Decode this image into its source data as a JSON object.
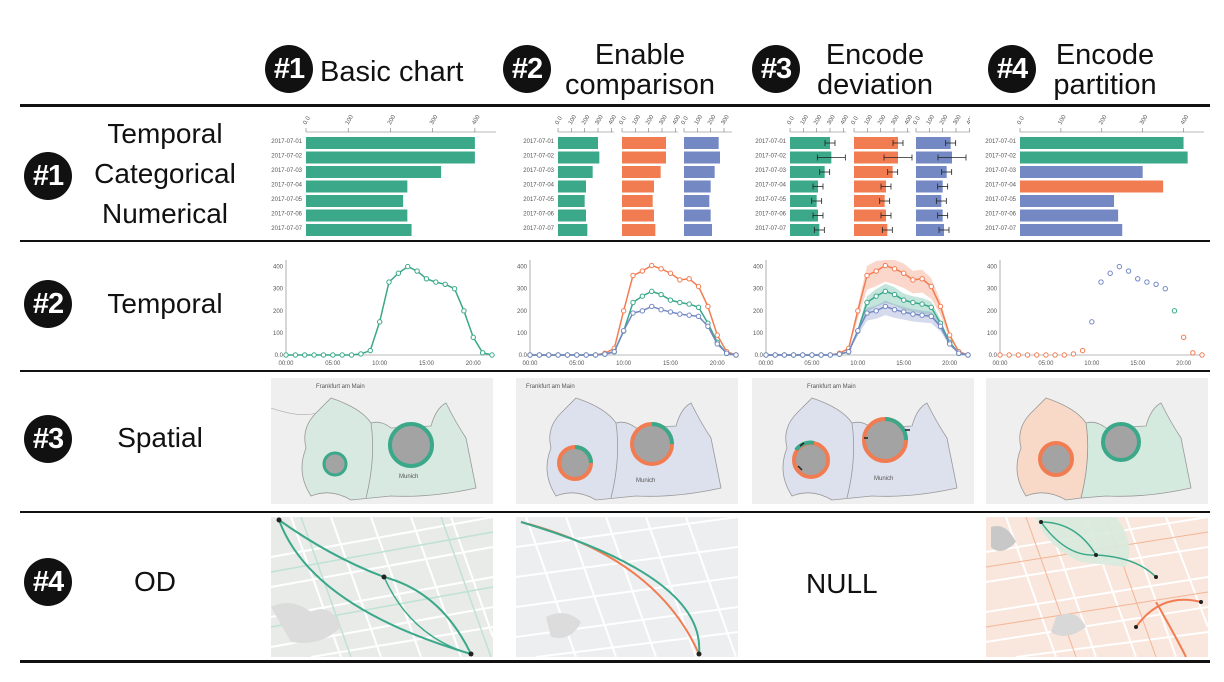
{
  "columns": [
    {
      "num": "#1",
      "title": "Basic chart"
    },
    {
      "num": "#2",
      "title": "Enable comparison"
    },
    {
      "num": "#3",
      "title": "Encode deviation"
    },
    {
      "num": "#4",
      "title": "Encode partition"
    }
  ],
  "rows": [
    {
      "num": "#1",
      "label_lines": [
        "Temporal",
        "Categorical",
        "Numerical"
      ]
    },
    {
      "num": "#2",
      "label": "Temporal"
    },
    {
      "num": "#3",
      "label": "Spatial"
    },
    {
      "num": "#4",
      "label": "OD"
    }
  ],
  "null_text": "NULL",
  "colors": {
    "green": "#3aa889",
    "orange": "#f27c52",
    "blue": "#7488c4",
    "text": "#111111"
  },
  "map_labels": {
    "frankfurt": "Frankfurt am Main",
    "munich": "Munich"
  },
  "bar_axis_ticks": [
    "0.0",
    "100",
    "200",
    "300",
    "400"
  ],
  "line_axis": {
    "y_ticks": [
      "0.0",
      "100",
      "200",
      "300",
      "400"
    ],
    "x_ticks": [
      "00:00",
      "05:00",
      "10:00",
      "15:00",
      "20:00"
    ]
  },
  "bar_dates": [
    "2017-07-01",
    "2017-07-02",
    "2017-07-03",
    "2017-07-04",
    "2017-07-05",
    "2017-07-06",
    "2017-07-07"
  ],
  "bar_values": {
    "basic": [
      400,
      400,
      320,
      240,
      230,
      240,
      250
    ],
    "compare_green": [
      300,
      310,
      260,
      210,
      200,
      210,
      220
    ],
    "compare_orange": [
      330,
      330,
      290,
      240,
      230,
      240,
      250
    ],
    "compare_blue": [
      260,
      270,
      230,
      200,
      190,
      200,
      210
    ],
    "partition": [
      400,
      410,
      300,
      350,
      230,
      240,
      250
    ],
    "partition_colors": [
      "green",
      "green",
      "blue",
      "orange",
      "blue",
      "blue",
      "blue"
    ]
  },
  "line_values": {
    "green": [
      0,
      0,
      0,
      0,
      0,
      0,
      0,
      0,
      5,
      20,
      150,
      330,
      370,
      400,
      380,
      345,
      330,
      320,
      300,
      200,
      80,
      10,
      0
    ],
    "orange": [
      0,
      0,
      0,
      0,
      0,
      0,
      0,
      0,
      8,
      30,
      200,
      360,
      380,
      405,
      390,
      370,
      340,
      345,
      310,
      220,
      90,
      15,
      0
    ],
    "blue": [
      0,
      0,
      0,
      0,
      0,
      0,
      0,
      0,
      4,
      15,
      110,
      190,
      200,
      220,
      205,
      195,
      185,
      180,
      175,
      130,
      50,
      8,
      0
    ]
  }
}
